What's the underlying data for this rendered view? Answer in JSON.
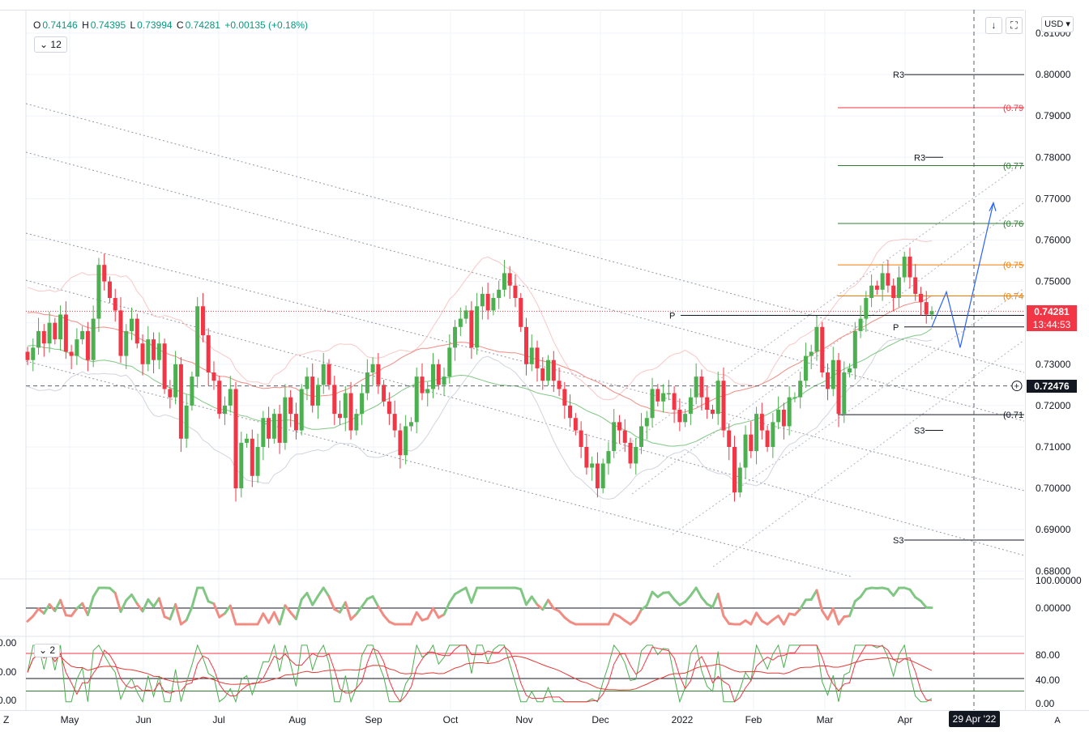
{
  "legend": {
    "o_key": "O",
    "o": "0.74146",
    "h_key": "H",
    "h": "0.74395",
    "l_key": "L",
    "l": "0.73994",
    "c_key": "C",
    "c": "0.74281",
    "change": "+0.00135 (+0.18%)"
  },
  "indicator_badge": "12",
  "indicator_badge2": "2",
  "currency": "USD",
  "last_price": "0.74281",
  "countdown": "13:44:53",
  "crosshair_price": "0.72476",
  "crosshair_date": "29 Apr '22",
  "axis_mode": "A",
  "colors": {
    "up": "#26a69a",
    "down": "#ef5350",
    "candle_up": "#4caf50",
    "candle_down": "#f23645",
    "price_tag": "#f23645",
    "crosshair_tag": "#131722"
  },
  "chart_data": {
    "type": "candlestick",
    "symbol_currency": "USD",
    "price_range": [
      0.68,
      0.81
    ],
    "y_ticks": [
      "0.81000",
      "0.80000",
      "0.79000",
      "0.78000",
      "0.77000",
      "0.76000",
      "0.75000",
      "0.74000",
      "0.73000",
      "0.72000",
      "0.71000",
      "0.70000",
      "0.69000",
      "0.68000"
    ],
    "x_ticks": [
      "May",
      "Jun",
      "Jul",
      "Aug",
      "Sep",
      "Oct",
      "Nov",
      "Dec",
      "2022",
      "Feb",
      "Mar",
      "Apr"
    ],
    "price_series": [
      0.731,
      0.734,
      0.738,
      0.735,
      0.74,
      0.736,
      0.742,
      0.733,
      0.732,
      0.736,
      0.738,
      0.731,
      0.741,
      0.754,
      0.75,
      0.746,
      0.743,
      0.732,
      0.738,
      0.741,
      0.735,
      0.73,
      0.736,
      0.731,
      0.735,
      0.724,
      0.722,
      0.73,
      0.712,
      0.72,
      0.727,
      0.744,
      0.737,
      0.728,
      0.726,
      0.718,
      0.72,
      0.724,
      0.7,
      0.711,
      0.712,
      0.703,
      0.71,
      0.717,
      0.712,
      0.718,
      0.711,
      0.722,
      0.718,
      0.714,
      0.724,
      0.727,
      0.72,
      0.725,
      0.73,
      0.725,
      0.718,
      0.717,
      0.723,
      0.714,
      0.718,
      0.723,
      0.728,
      0.73,
      0.725,
      0.721,
      0.718,
      0.714,
      0.708,
      0.715,
      0.716,
      0.727,
      0.723,
      0.724,
      0.73,
      0.725,
      0.727,
      0.734,
      0.739,
      0.741,
      0.743,
      0.734,
      0.744,
      0.747,
      0.743,
      0.746,
      0.748,
      0.752,
      0.749,
      0.746,
      0.739,
      0.73,
      0.734,
      0.729,
      0.726,
      0.731,
      0.726,
      0.724,
      0.72,
      0.717,
      0.714,
      0.71,
      0.705,
      0.706,
      0.7,
      0.706,
      0.709,
      0.716,
      0.714,
      0.711,
      0.706,
      0.71,
      0.715,
      0.717,
      0.724,
      0.721,
      0.723,
      0.723,
      0.719,
      0.716,
      0.718,
      0.722,
      0.727,
      0.722,
      0.719,
      0.718,
      0.726,
      0.714,
      0.71,
      0.699,
      0.705,
      0.713,
      0.709,
      0.718,
      0.714,
      0.71,
      0.716,
      0.719,
      0.715,
      0.722,
      0.722,
      0.726,
      0.732,
      0.733,
      0.739,
      0.728,
      0.724,
      0.731,
      0.718,
      0.728,
      0.729,
      0.738,
      0.741,
      0.746,
      0.749,
      0.748,
      0.752,
      0.749,
      0.746,
      0.751,
      0.756,
      0.751,
      0.747,
      0.745,
      0.742,
      0.7428
    ],
    "levels": [
      {
        "label": "R3",
        "value": 0.8
      },
      {
        "label": "(0.79",
        "value": 0.792
      },
      {
        "label": "R3",
        "value": 0.78
      },
      {
        "label": "(0.77",
        "value": 0.778
      },
      {
        "label": "(0.76",
        "value": 0.764
      },
      {
        "label": "(0.75",
        "value": 0.754
      },
      {
        "label": "(0.74",
        "value": 0.7465
      },
      {
        "label": "P",
        "value": 0.7418
      },
      {
        "label": "P",
        "value": 0.739
      },
      {
        "label": "(0.71",
        "value": 0.7178
      },
      {
        "label": "S3",
        "value": 0.714
      },
      {
        "label": "S3",
        "value": 0.6875
      }
    ],
    "lower_pane_1": {
      "y_ticks": [
        "100.00000",
        "0.00000"
      ]
    },
    "lower_pane_2": {
      "y_ticks": [
        "80.00",
        "40.00",
        "0.00"
      ],
      "left_ticks": [
        "0.00",
        "0.00",
        "0.00"
      ]
    }
  }
}
